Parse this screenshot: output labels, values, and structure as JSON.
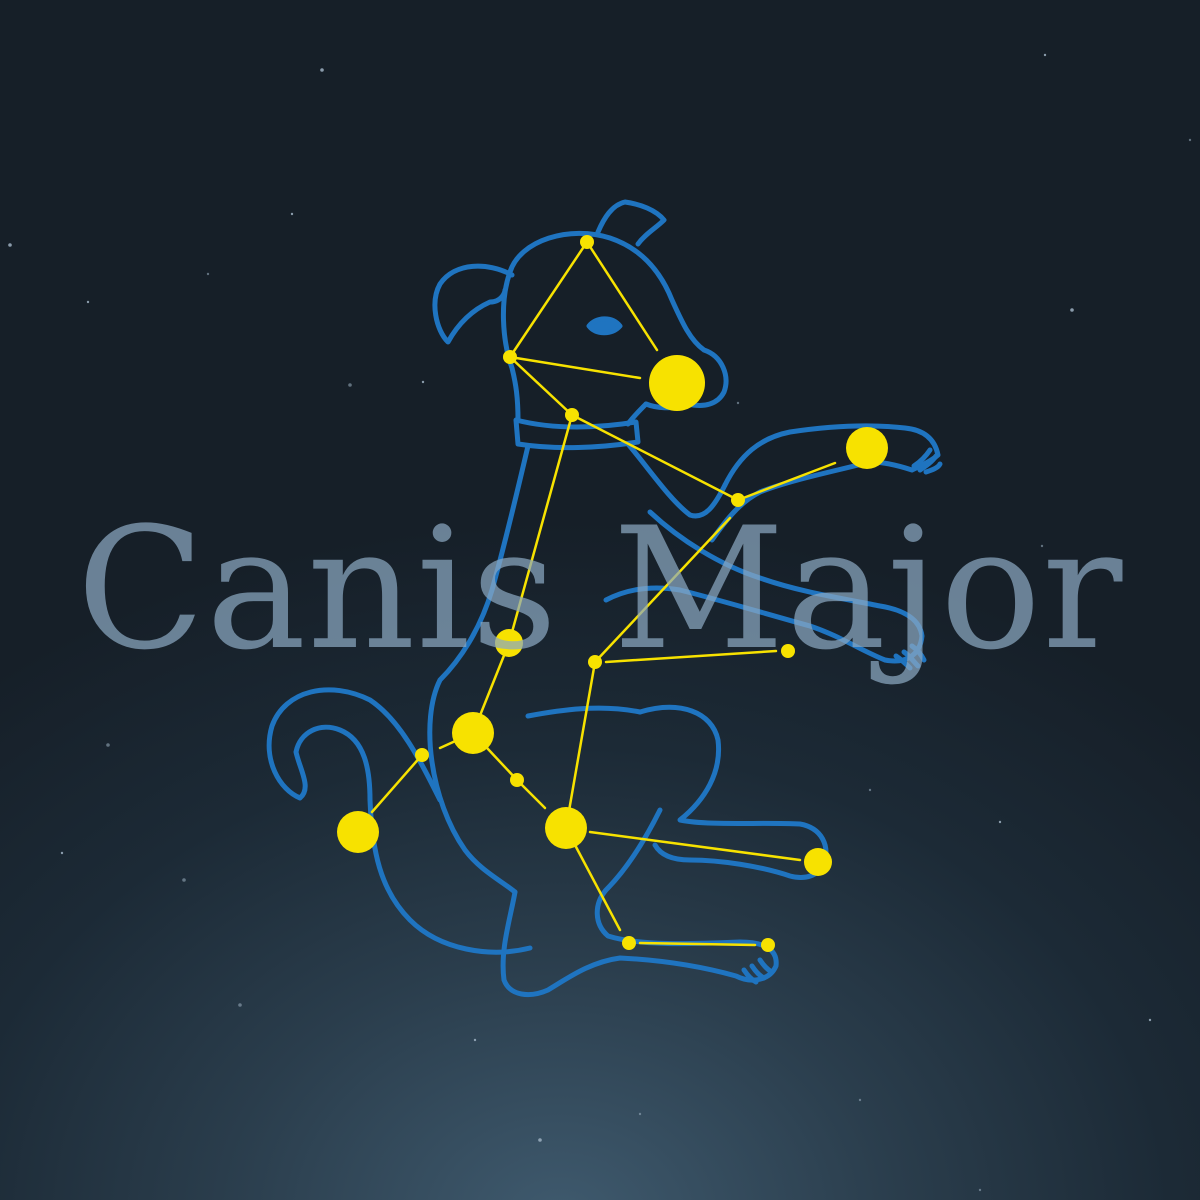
{
  "title": "Canis Major",
  "colors": {
    "sky_dark": "#161f28",
    "sky_light": "#3f5a6e",
    "outline": "#1f74c0",
    "stars": "#f7e200",
    "title": "#8aa7c0"
  },
  "illustration": {
    "figure": "dog-outline",
    "constellation": "canis-major-star-pattern"
  }
}
